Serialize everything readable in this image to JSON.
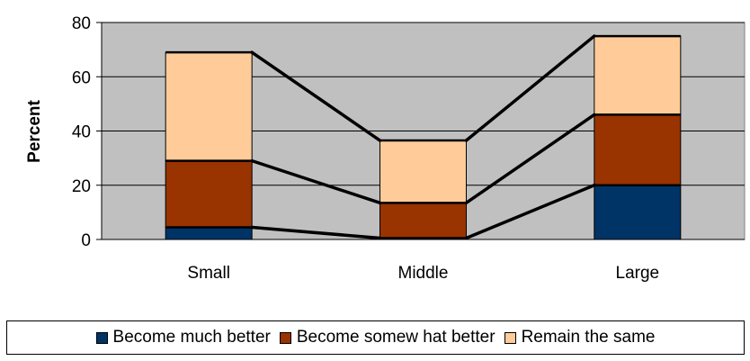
{
  "chart_data": {
    "type": "bar",
    "stacked": true,
    "categories": [
      "Small",
      "Middle",
      "Large"
    ],
    "series": [
      {
        "name": "Become much better",
        "values": [
          4.5,
          0.5,
          20
        ],
        "color": "#003366"
      },
      {
        "name": "Become somew hat better",
        "values": [
          24.5,
          13,
          26
        ],
        "color": "#993300"
      },
      {
        "name": "Remain the same",
        "values": [
          40,
          23,
          29
        ],
        "color": "#FFCC99"
      }
    ],
    "title": "",
    "xlabel": "",
    "ylabel": "Percent",
    "ylim": [
      0,
      80
    ],
    "yticks": [
      "0",
      "20",
      "40",
      "60",
      "80"
    ],
    "grid": true,
    "plot_background": "#C0C0C0",
    "series_lines": true,
    "legend_position": "bottom"
  }
}
